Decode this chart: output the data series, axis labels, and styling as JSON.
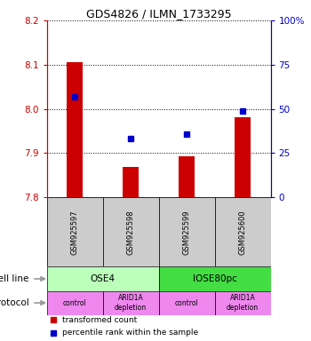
{
  "title": "GDS4826 / ILMN_1733295",
  "samples": [
    "GSM925597",
    "GSM925598",
    "GSM925599",
    "GSM925600"
  ],
  "bar_values": [
    8.105,
    7.868,
    7.893,
    7.981
  ],
  "bar_base": 7.8,
  "percentile_values": [
    57,
    33,
    36,
    49
  ],
  "ylim_left": [
    7.8,
    8.2
  ],
  "ylim_right": [
    0,
    100
  ],
  "yticks_left": [
    7.8,
    7.9,
    8.0,
    8.1,
    8.2
  ],
  "yticks_right": [
    0,
    25,
    50,
    75,
    100
  ],
  "ytick_right_labels": [
    "0",
    "25",
    "50",
    "75",
    "100%"
  ],
  "bar_color": "#cc0000",
  "dot_color": "#0000cc",
  "cell_line_groups": [
    {
      "label": "OSE4",
      "cols": [
        0,
        1
      ],
      "color": "#bbffbb"
    },
    {
      "label": "IOSE80pc",
      "cols": [
        2,
        3
      ],
      "color": "#44dd44"
    }
  ],
  "protocol_groups": [
    {
      "label": "control",
      "col": 0,
      "color": "#ee88ee"
    },
    {
      "label": "ARID1A\ndepletion",
      "col": 1,
      "color": "#ee88ee"
    },
    {
      "label": "control",
      "col": 2,
      "color": "#ee88ee"
    },
    {
      "label": "ARID1A\ndepletion",
      "col": 3,
      "color": "#ee88ee"
    }
  ],
  "cell_line_label": "cell line",
  "protocol_label": "protocol",
  "legend_bar_label": "transformed count",
  "legend_dot_label": "percentile rank within the sample",
  "sample_box_color": "#cccccc",
  "left_axis_color": "#cc0000",
  "right_axis_color": "#0000cc",
  "arrow_color": "#999999"
}
